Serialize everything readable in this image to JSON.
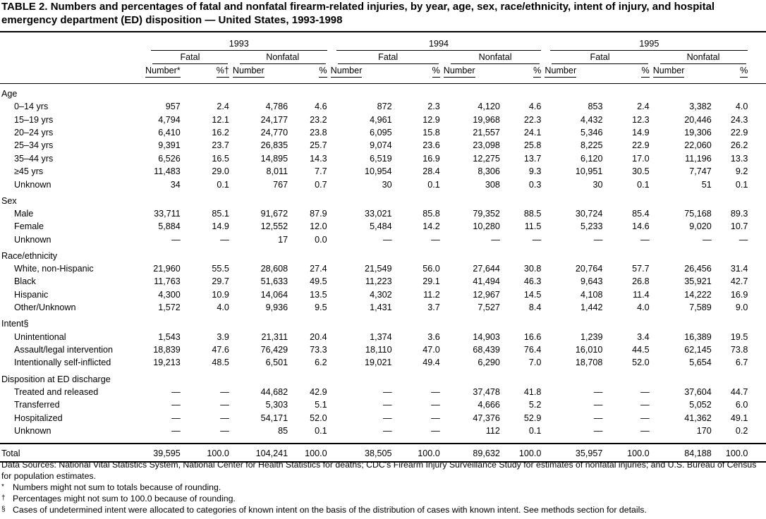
{
  "title": "TABLE 2. Numbers and percentages of fatal and nonfatal firearm-related injuries, by year, age, sex, race/ethnicity, intent of injury, and hospital emergency department (ED) disposition — United States, 1993-1998",
  "header": {
    "years": [
      {
        "year": "1993",
        "groups": [
          {
            "label": "Fatal",
            "columns": [
              "Number*",
              "%†"
            ]
          },
          {
            "label": "Nonfatal",
            "columns": [
              "Number",
              "%"
            ]
          }
        ]
      },
      {
        "year": "1994",
        "groups": [
          {
            "label": "Fatal",
            "columns": [
              "Number",
              "%"
            ]
          },
          {
            "label": "Nonfatal",
            "columns": [
              "Number",
              "%"
            ]
          }
        ]
      },
      {
        "year": "1995",
        "groups": [
          {
            "label": "Fatal",
            "columns": [
              "Number",
              "%"
            ]
          },
          {
            "label": "Nonfatal",
            "columns": [
              "Number",
              "%"
            ]
          }
        ]
      }
    ]
  },
  "sections": [
    {
      "label": "Age",
      "rows": [
        {
          "label": "0–14 yrs",
          "cells": [
            "957",
            "2.4",
            "4,786",
            "4.6",
            "872",
            "2.3",
            "4,120",
            "4.6",
            "853",
            "2.4",
            "3,382",
            "4.0"
          ]
        },
        {
          "label": "15–19 yrs",
          "cells": [
            "4,794",
            "12.1",
            "24,177",
            "23.2",
            "4,961",
            "12.9",
            "19,968",
            "22.3",
            "4,432",
            "12.3",
            "20,446",
            "24.3"
          ]
        },
        {
          "label": "20–24 yrs",
          "cells": [
            "6,410",
            "16.2",
            "24,770",
            "23.8",
            "6,095",
            "15.8",
            "21,557",
            "24.1",
            "5,346",
            "14.9",
            "19,306",
            "22.9"
          ]
        },
        {
          "label": "25–34 yrs",
          "cells": [
            "9,391",
            "23.7",
            "26,835",
            "25.7",
            "9,074",
            "23.6",
            "23,098",
            "25.8",
            "8,225",
            "22.9",
            "22,060",
            "26.2"
          ]
        },
        {
          "label": "35–44 yrs",
          "cells": [
            "6,526",
            "16.5",
            "14,895",
            "14.3",
            "6,519",
            "16.9",
            "12,275",
            "13.7",
            "6,120",
            "17.0",
            "11,196",
            "13.3"
          ]
        },
        {
          "label": "≥45 yrs",
          "cells": [
            "11,483",
            "29.0",
            "8,011",
            "7.7",
            "10,954",
            "28.4",
            "8,306",
            "9.3",
            "10,951",
            "30.5",
            "7,747",
            "9.2"
          ]
        },
        {
          "label": "Unknown",
          "cells": [
            "34",
            "0.1",
            "767",
            "0.7",
            "30",
            "0.1",
            "308",
            "0.3",
            "30",
            "0.1",
            "51",
            "0.1"
          ]
        }
      ]
    },
    {
      "label": "Sex",
      "rows": [
        {
          "label": "Male",
          "cells": [
            "33,711",
            "85.1",
            "91,672",
            "87.9",
            "33,021",
            "85.8",
            "79,352",
            "88.5",
            "30,724",
            "85.4",
            "75,168",
            "89.3"
          ]
        },
        {
          "label": "Female",
          "cells": [
            "5,884",
            "14.9",
            "12,552",
            "12.0",
            "5,484",
            "14.2",
            "10,280",
            "11.5",
            "5,233",
            "14.6",
            "9,020",
            "10.7"
          ]
        },
        {
          "label": "Unknown",
          "cells": [
            "—",
            "—",
            "17",
            "0.0",
            "—",
            "—",
            "—",
            "—",
            "—",
            "—",
            "—",
            "—"
          ]
        }
      ]
    },
    {
      "label": "Race/ethnicity",
      "rows": [
        {
          "label": "White, non-Hispanic",
          "cells": [
            "21,960",
            "55.5",
            "28,608",
            "27.4",
            "21,549",
            "56.0",
            "27,644",
            "30.8",
            "20,764",
            "57.7",
            "26,456",
            "31.4"
          ]
        },
        {
          "label": "Black",
          "cells": [
            "11,763",
            "29.7",
            "51,633",
            "49.5",
            "11,223",
            "29.1",
            "41,494",
            "46.3",
            "9,643",
            "26.8",
            "35,921",
            "42.7"
          ]
        },
        {
          "label": "Hispanic",
          "cells": [
            "4,300",
            "10.9",
            "14,064",
            "13.5",
            "4,302",
            "11.2",
            "12,967",
            "14.5",
            "4,108",
            "11.4",
            "14,222",
            "16.9"
          ]
        },
        {
          "label": "Other/Unknown",
          "cells": [
            "1,572",
            "4.0",
            "9,936",
            "9.5",
            "1,431",
            "3.7",
            "7,527",
            "8.4",
            "1,442",
            "4.0",
            "7,589",
            "9.0"
          ]
        }
      ]
    },
    {
      "label": "Intent§",
      "rows": [
        {
          "label": "Unintentional",
          "cells": [
            "1,543",
            "3.9",
            "21,311",
            "20.4",
            "1,374",
            "3.6",
            "14,903",
            "16.6",
            "1,239",
            "3.4",
            "16,389",
            "19.5"
          ]
        },
        {
          "label": "Assault/legal intervention",
          "cells": [
            "18,839",
            "47.6",
            "76,429",
            "73.3",
            "18,110",
            "47.0",
            "68,439",
            "76.4",
            "16,010",
            "44.5",
            "62,145",
            "73.8"
          ]
        },
        {
          "label": "Intentionally self-inflicted",
          "cells": [
            "19,213",
            "48.5",
            "6,501",
            "6.2",
            "19,021",
            "49.4",
            "6,290",
            "7.0",
            "18,708",
            "52.0",
            "5,654",
            "6.7"
          ]
        }
      ]
    },
    {
      "label": "Disposition at ED discharge",
      "rows": [
        {
          "label": "Treated and released",
          "cells": [
            "—",
            "—",
            "44,682",
            "42.9",
            "—",
            "—",
            "37,478",
            "41.8",
            "—",
            "—",
            "37,604",
            "44.7"
          ]
        },
        {
          "label": "Transferred",
          "cells": [
            "—",
            "—",
            "5,303",
            "5.1",
            "—",
            "—",
            "4,666",
            "5.2",
            "—",
            "—",
            "5,052",
            "6.0"
          ]
        },
        {
          "label": "Hospitalized",
          "cells": [
            "—",
            "—",
            "54,171",
            "52.0",
            "—",
            "—",
            "47,376",
            "52.9",
            "—",
            "—",
            "41,362",
            "49.1"
          ]
        },
        {
          "label": "Unknown",
          "cells": [
            "—",
            "—",
            "85",
            "0.1",
            "—",
            "—",
            "112",
            "0.1",
            "—",
            "—",
            "170",
            "0.2"
          ]
        }
      ]
    }
  ],
  "total": {
    "label": "Total",
    "cells": [
      "39,595",
      "100.0",
      "104,241",
      "100.0",
      "38,505",
      "100.0",
      "89,632",
      "100.0",
      "35,957",
      "100.0",
      "84,188",
      "100.0"
    ]
  },
  "footnotes": {
    "sources": "Data Sources: National Vital Statistics System, National Center for Health Statistics for deaths; CDC's Firearm Injury Surveillance Study for estimates of nonfatal injuries; and U.S. Bureau of Census for population estimates.",
    "notes": [
      {
        "symbol": "*",
        "text": "Numbers might not sum to totals because of rounding."
      },
      {
        "symbol": "†",
        "text": "Percentages might not sum to 100.0 because of rounding."
      },
      {
        "symbol": "§",
        "text": "Cases of undetermined intent were allocated to categories of known intent on the basis of the distribution of cases with known intent. See methods section for details."
      }
    ]
  }
}
